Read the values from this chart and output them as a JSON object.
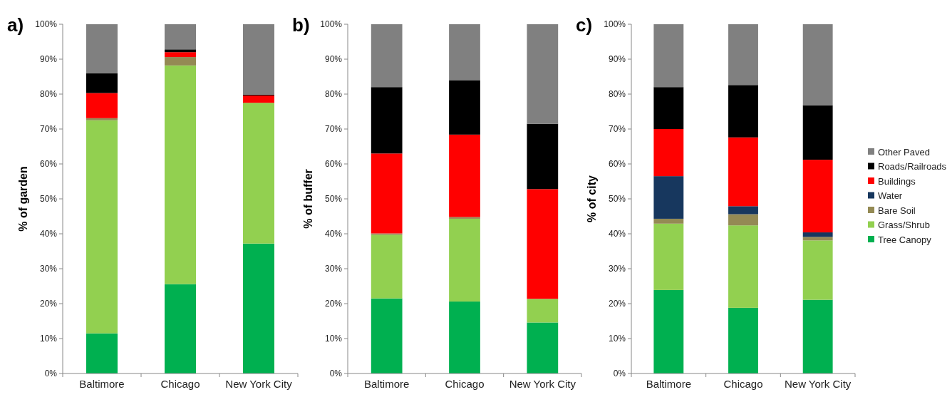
{
  "chart_data": [
    {
      "type": "bar",
      "stacked": true,
      "title": "a)",
      "ylabel": "% of garden",
      "categories": [
        "Baltimore",
        "Chicago",
        "New York City"
      ],
      "ylim": [
        0,
        100
      ],
      "yticks": [
        {
          "value": 0,
          "label": "0%"
        },
        {
          "value": 10,
          "label": "10%"
        },
        {
          "value": 20,
          "label": "20%"
        },
        {
          "value": 30,
          "label": "30%"
        },
        {
          "value": 40,
          "label": "40%"
        },
        {
          "value": 50,
          "label": "50%"
        },
        {
          "value": 60,
          "label": "60%"
        },
        {
          "value": 70,
          "label": "70%"
        },
        {
          "value": 80,
          "label": "80%"
        },
        {
          "value": 90,
          "label": "90%"
        },
        {
          "value": 100,
          "label": "100%"
        }
      ],
      "grid": false,
      "legend": false,
      "series": [
        {
          "color": "#00b050",
          "values": [
            11.5,
            25.6,
            37.2
          ]
        },
        {
          "color": "#92d050",
          "values": [
            61,
            62.6,
            40.3
          ]
        },
        {
          "color": "#948a54",
          "values": [
            0.6,
            2.4,
            0
          ]
        },
        {
          "color": "#ff0000",
          "values": [
            7.2,
            1.4,
            2.1
          ]
        },
        {
          "color": "#000000",
          "values": [
            5.7,
            0.8,
            0.2
          ]
        },
        {
          "color": "#808080",
          "values": [
            14,
            7.2,
            20.2
          ]
        }
      ]
    },
    {
      "type": "bar",
      "stacked": true,
      "title": "b)",
      "ylabel": "% of buffer",
      "categories": [
        "Baltimore",
        "Chicago",
        "New York City"
      ],
      "ylim": [
        0,
        100
      ],
      "yticks": [
        {
          "value": 0,
          "label": "0%"
        },
        {
          "value": 10,
          "label": "10%"
        },
        {
          "value": 20,
          "label": "20%"
        },
        {
          "value": 30,
          "label": "30%"
        },
        {
          "value": 40,
          "label": "40%"
        },
        {
          "value": 50,
          "label": "50%"
        },
        {
          "value": 60,
          "label": "60%"
        },
        {
          "value": 70,
          "label": "70%"
        },
        {
          "value": 80,
          "label": "80%"
        },
        {
          "value": 90,
          "label": "90%"
        },
        {
          "value": 100,
          "label": "100%"
        }
      ],
      "grid": false,
      "legend": false,
      "series": [
        {
          "color": "#00b050",
          "values": [
            21.5,
            20.6,
            14.6
          ]
        },
        {
          "color": "#92d050",
          "values": [
            18.2,
            23.7,
            6.7
          ]
        },
        {
          "color": "#948a54",
          "values": [
            0.4,
            0.5,
            0.1
          ]
        },
        {
          "color": "#ff0000",
          "values": [
            22.9,
            23.6,
            31.4
          ]
        },
        {
          "color": "#000000",
          "values": [
            19,
            15.6,
            18.7
          ]
        },
        {
          "color": "#808080",
          "values": [
            18,
            16,
            28.5
          ]
        }
      ]
    },
    {
      "type": "bar",
      "stacked": true,
      "title": "c)",
      "ylabel": "% of city",
      "categories": [
        "Baltimore",
        "Chicago",
        "New York City"
      ],
      "ylim": [
        0,
        100
      ],
      "yticks": [
        {
          "value": 0,
          "label": "0%"
        },
        {
          "value": 10,
          "label": "10%"
        },
        {
          "value": 20,
          "label": "20%"
        },
        {
          "value": 30,
          "label": "30%"
        },
        {
          "value": 40,
          "label": "40%"
        },
        {
          "value": 50,
          "label": "50%"
        },
        {
          "value": 60,
          "label": "60%"
        },
        {
          "value": 70,
          "label": "70%"
        },
        {
          "value": 80,
          "label": "80%"
        },
        {
          "value": 90,
          "label": "90%"
        },
        {
          "value": 100,
          "label": "100%"
        }
      ],
      "grid": false,
      "legend": "right",
      "series": [
        {
          "name": "Tree Canopy",
          "color": "#00b050",
          "values": [
            23.9,
            18.8,
            21.1
          ]
        },
        {
          "name": "Grass/Shrub",
          "color": "#92d050",
          "values": [
            19,
            23.6,
            17
          ]
        },
        {
          "name": "Bare Soil",
          "color": "#948a54",
          "values": [
            1.4,
            3.2,
            1
          ]
        },
        {
          "name": "Water",
          "color": "#17375e",
          "values": [
            12.2,
            2.3,
            1.3
          ]
        },
        {
          "name": "Buildings",
          "color": "#ff0000",
          "values": [
            13.5,
            19.7,
            20.8
          ]
        },
        {
          "name": "Roads/Railroads",
          "color": "#000000",
          "values": [
            12,
            15,
            15.6
          ]
        },
        {
          "name": "Other Paved",
          "color": "#808080",
          "values": [
            18,
            17.4,
            23.2
          ]
        }
      ]
    }
  ]
}
